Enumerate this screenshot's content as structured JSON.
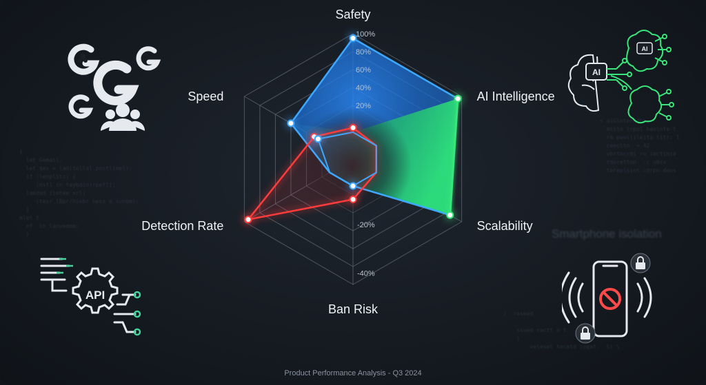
{
  "chart_data": {
    "type": "radar",
    "axes": [
      "Safety",
      "AI Intelligence",
      "Scalability",
      "Ban Risk",
      "Detection Rate",
      "Speed"
    ],
    "tick_labels": [
      "100%",
      "80%",
      "60%",
      "40%",
      "20%",
      "-20%",
      "-40%"
    ],
    "range": [
      -40,
      100
    ],
    "grid": true,
    "series": [
      {
        "values": [
          95,
          95,
          85,
          -10,
          -10,
          40
        ],
        "color": "#3da8ff"
      },
      {
        "values": [
          -10,
          95,
          85,
          -10,
          -10,
          40
        ],
        "color": "#39e67a"
      },
      {
        "values": [
          -5,
          -10,
          -10,
          5,
          95,
          10
        ],
        "color": "#ff3b3b"
      },
      {
        "values": [
          -10,
          -10,
          -10,
          -10,
          -10,
          5
        ],
        "color": "#3da8ff"
      }
    ]
  },
  "colors": {
    "blue": "#3da8ff",
    "green": "#39e67a",
    "red": "#ff3b3b",
    "grid": "#5b6470"
  },
  "icons": [
    "google-users-icon",
    "ai-brain-icon",
    "api-gear-icon",
    "phone-blocked-icon"
  ],
  "background": {
    "heading": "Smartphone isolation"
  },
  "footer": "Product Performance Analysis - Q3 2024"
}
